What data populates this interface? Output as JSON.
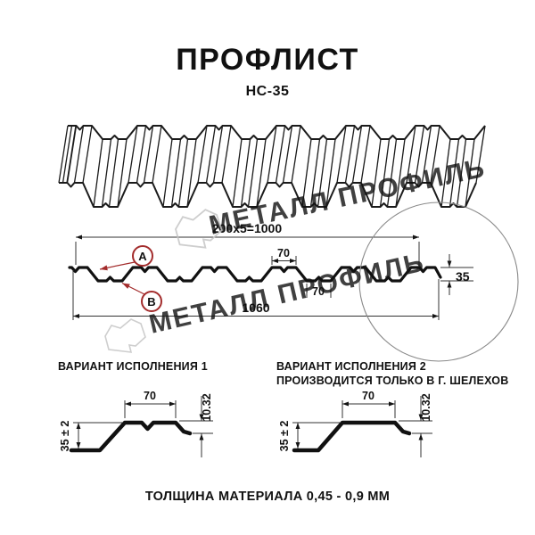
{
  "header": {
    "title": "ПРОФЛИСТ",
    "subtitle": "НС-35"
  },
  "section_view": {
    "dim_total_top": "200x5=1000",
    "dim_rib_top": "70",
    "dim_rib_bottom": "70",
    "dim_overall_width": "1060",
    "dim_height": "35",
    "marker_a": "A",
    "marker_b": "B"
  },
  "variant1": {
    "heading": "ВАРИАНТ ИСПОЛНЕНИЯ 1",
    "dim_top_width": "70",
    "dim_step": "10.32",
    "dim_height": "35 ± 2"
  },
  "variant2": {
    "heading_line1": "ВАРИАНТ ИСПОЛНЕНИЯ 2",
    "heading_line2": "ПРОИЗВОДИТСЯ ТОЛЬКО В Г. ШЕЛЕХОВ",
    "dim_top_width": "70",
    "dim_step": "10.32",
    "dim_height": "35 ± 2"
  },
  "footer": {
    "thickness_note": "ТОЛЩИНА МАТЕРИАЛА 0,45 - 0,9 ММ"
  },
  "watermark": {
    "text": "МЕТАЛЛ ПРОФИЛЬ",
    "color": "#c6c6c6"
  },
  "colors": {
    "line": "#151515",
    "marker_red": "#a32c2c",
    "detail_circle": "#8a8a8a"
  }
}
